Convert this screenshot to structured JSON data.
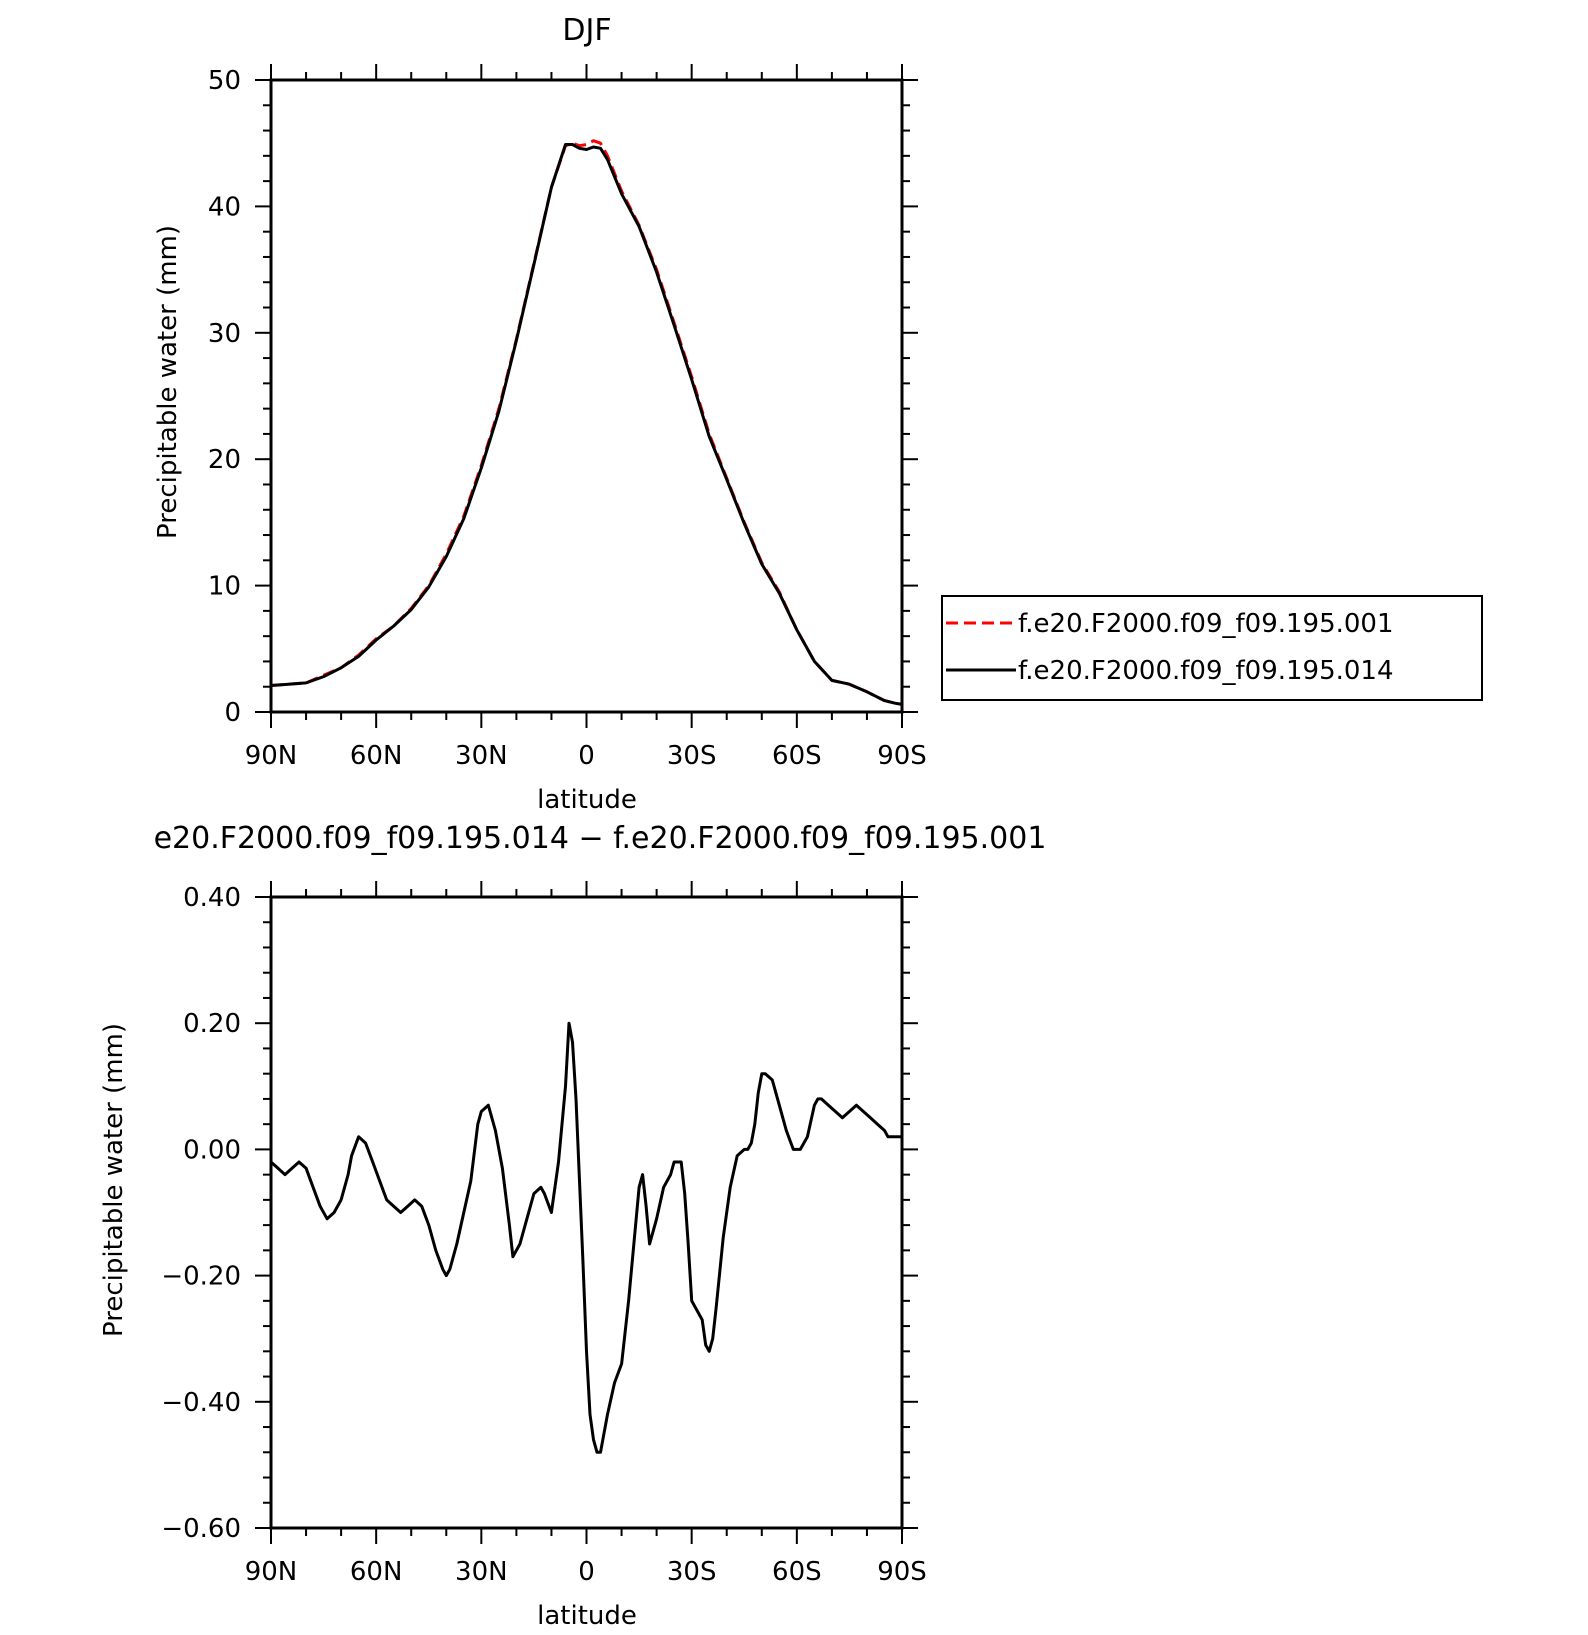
{
  "chart_data": [
    {
      "type": "line",
      "title": "DJF",
      "xlabel": "latitude",
      "ylabel": "Precipitable water (mm)",
      "xlim": [
        -90,
        90
      ],
      "ylim": [
        0,
        50
      ],
      "xticks": [
        -90,
        -60,
        -30,
        0,
        30,
        60,
        90
      ],
      "xtick_labels": [
        "90N",
        "60N",
        "30N",
        "0",
        "30S",
        "60S",
        "90S"
      ],
      "yticks": [
        0,
        10,
        20,
        30,
        40,
        50
      ],
      "ytick_labels": [
        "0",
        "10",
        "20",
        "30",
        "40",
        "50"
      ],
      "legend_position": "right",
      "series": [
        {
          "name": "f.e20.F2000.f09_f09.195.001",
          "color": "#ff0000",
          "style": "dashed",
          "x": [
            -90,
            -85,
            -80,
            -75,
            -70,
            -65,
            -60,
            -55,
            -50,
            -45,
            -40,
            -35,
            -30,
            -25,
            -20,
            -15,
            -10,
            -6,
            -4,
            -2,
            0,
            2,
            4,
            6,
            10,
            15,
            20,
            25,
            30,
            35,
            40,
            45,
            50,
            55,
            60,
            65,
            70,
            75,
            80,
            85,
            88,
            90
          ],
          "y": [
            2.1,
            2.2,
            2.3,
            2.9,
            3.5,
            4.5,
            5.8,
            6.8,
            8.2,
            10.0,
            12.5,
            15.5,
            19.5,
            24.0,
            29.5,
            35.5,
            41.5,
            44.8,
            45.0,
            44.8,
            44.9,
            45.2,
            45.0,
            44.0,
            41.2,
            38.5,
            35.0,
            30.8,
            26.5,
            22.0,
            18.5,
            15.0,
            11.8,
            9.5,
            6.5,
            4.0,
            2.5,
            2.2,
            1.6,
            0.9,
            0.7,
            0.6
          ]
        },
        {
          "name": "f.e20.F2000.f09_f09.195.014",
          "color": "#000000",
          "style": "solid",
          "x": [
            -90,
            -85,
            -80,
            -75,
            -70,
            -65,
            -60,
            -55,
            -50,
            -45,
            -40,
            -35,
            -30,
            -25,
            -20,
            -15,
            -10,
            -6,
            -4,
            -2,
            0,
            2,
            4,
            6,
            10,
            15,
            20,
            25,
            30,
            35,
            40,
            45,
            50,
            55,
            60,
            65,
            70,
            75,
            80,
            85,
            88,
            90
          ],
          "y": [
            2.1,
            2.2,
            2.3,
            2.8,
            3.5,
            4.4,
            5.7,
            6.8,
            8.1,
            9.9,
            12.3,
            15.3,
            19.3,
            23.8,
            29.4,
            35.4,
            41.5,
            44.9,
            44.9,
            44.6,
            44.5,
            44.7,
            44.6,
            43.7,
            41.0,
            38.4,
            34.8,
            30.6,
            26.3,
            21.8,
            18.4,
            14.9,
            11.7,
            9.4,
            6.5,
            4.0,
            2.5,
            2.2,
            1.6,
            0.9,
            0.7,
            0.6
          ]
        }
      ]
    },
    {
      "type": "line",
      "title": "e20.F2000.f09_f09.195.014 − f.e20.F2000.f09_f09.195.001",
      "xlabel": "latitude",
      "ylabel": "Precipitable water (mm)",
      "xlim": [
        -90,
        90
      ],
      "ylim": [
        -0.6,
        0.4
      ],
      "xticks": [
        -90,
        -60,
        -30,
        0,
        30,
        60,
        90
      ],
      "xtick_labels": [
        "90N",
        "60N",
        "30N",
        "0",
        "30S",
        "60S",
        "90S"
      ],
      "yticks": [
        -0.6,
        -0.4,
        -0.2,
        0.0,
        0.2,
        0.4
      ],
      "ytick_labels": [
        "−0.60",
        "−0.40",
        "−0.20",
        "0.00",
        "0.20",
        "0.40"
      ],
      "series": [
        {
          "color": "#000000",
          "style": "solid",
          "x": [
            -90,
            -88,
            -86,
            -84,
            -82,
            -80,
            -78,
            -76,
            -74,
            -72,
            -70,
            -68,
            -67,
            -65,
            -63,
            -61,
            -59,
            -57,
            -55,
            -53,
            -51,
            -49,
            -47,
            -45,
            -43,
            -41,
            -40,
            -39,
            -37,
            -35,
            -33,
            -31,
            -30,
            -28,
            -26,
            -24,
            -22,
            -21,
            -19,
            -17,
            -15,
            -13,
            -12,
            -10,
            -8,
            -7,
            -6,
            -5,
            -4,
            -3,
            -2,
            -1,
            0,
            1,
            2,
            3,
            4,
            6,
            8,
            10,
            12,
            14,
            15,
            16,
            17,
            18,
            20,
            22,
            24,
            25,
            26,
            27,
            28,
            29,
            30,
            31,
            32,
            33,
            34,
            35,
            36,
            37,
            39,
            41,
            43,
            45,
            46,
            47,
            48,
            49,
            50,
            51,
            53,
            55,
            57,
            59,
            61,
            63,
            65,
            66,
            67,
            69,
            71,
            73,
            75,
            77,
            79,
            81,
            83,
            85,
            86,
            87,
            88,
            89,
            90
          ],
          "y": [
            -0.02,
            -0.03,
            -0.04,
            -0.03,
            -0.02,
            -0.03,
            -0.06,
            -0.09,
            -0.11,
            -0.1,
            -0.08,
            -0.04,
            -0.01,
            0.02,
            0.01,
            -0.02,
            -0.05,
            -0.08,
            -0.09,
            -0.1,
            -0.09,
            -0.08,
            -0.09,
            -0.12,
            -0.16,
            -0.19,
            -0.2,
            -0.19,
            -0.15,
            -0.1,
            -0.05,
            0.04,
            0.06,
            0.07,
            0.03,
            -0.03,
            -0.12,
            -0.17,
            -0.15,
            -0.11,
            -0.07,
            -0.06,
            -0.07,
            -0.1,
            -0.02,
            0.04,
            0.1,
            0.2,
            0.17,
            0.08,
            -0.05,
            -0.18,
            -0.32,
            -0.42,
            -0.46,
            -0.48,
            -0.48,
            -0.42,
            -0.37,
            -0.34,
            -0.24,
            -0.12,
            -0.06,
            -0.04,
            -0.09,
            -0.15,
            -0.11,
            -0.06,
            -0.04,
            -0.02,
            -0.02,
            -0.02,
            -0.07,
            -0.15,
            -0.24,
            -0.25,
            -0.26,
            -0.27,
            -0.31,
            -0.32,
            -0.3,
            -0.25,
            -0.14,
            -0.06,
            -0.01,
            0.0,
            0.0,
            0.01,
            0.04,
            0.09,
            0.12,
            0.12,
            0.11,
            0.07,
            0.03,
            0.0,
            0.0,
            0.02,
            0.07,
            0.08,
            0.08,
            0.07,
            0.06,
            0.05,
            0.06,
            0.07,
            0.06,
            0.05,
            0.04,
            0.03,
            0.02,
            0.02,
            0.02,
            0.02,
            0.02
          ]
        }
      ]
    }
  ]
}
